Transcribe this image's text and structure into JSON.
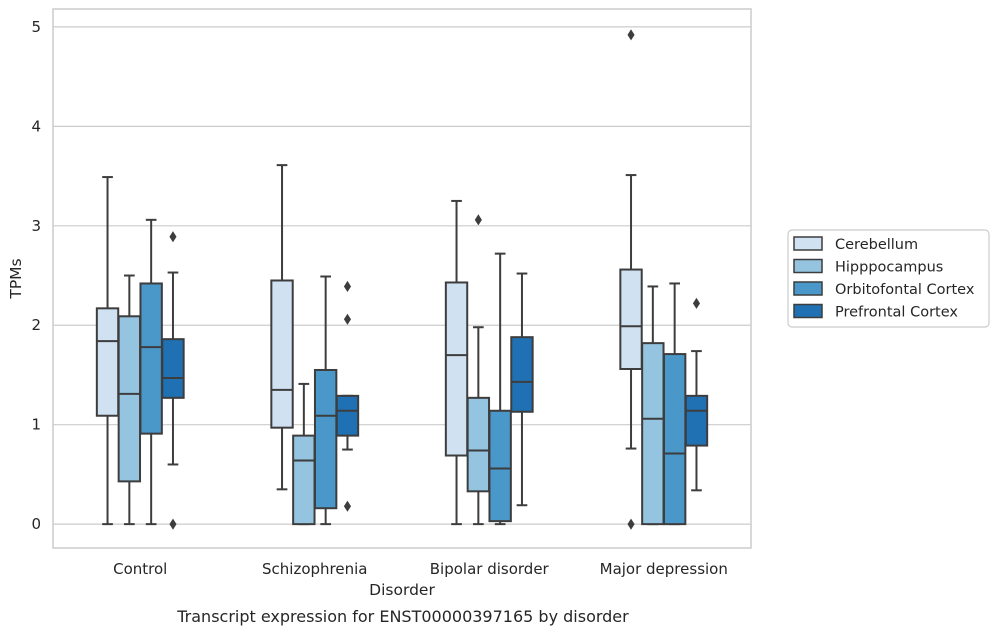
{
  "caption": "Transcript expression for ENST00000397165 by disorder",
  "chart_data": {
    "type": "boxplot",
    "xlabel": "Disorder",
    "ylabel": "TPMs",
    "ylim": [
      -0.24,
      5.18
    ],
    "yticks": [
      0,
      1,
      2,
      3,
      4,
      5
    ],
    "grid": "horizontal",
    "legend_position": "right",
    "categories": [
      "Control",
      "Schizophrenia",
      "Bipolar disorder",
      "Major depression"
    ],
    "series": [
      {
        "name": "Cerebellum",
        "color": "#d0e1f2",
        "boxes": [
          {
            "whislo": 0.0,
            "q1": 1.09,
            "med": 1.84,
            "q3": 2.17,
            "whishi": 3.49,
            "fliers": []
          },
          {
            "whislo": 0.35,
            "q1": 0.97,
            "med": 1.35,
            "q3": 2.45,
            "whishi": 3.61,
            "fliers": []
          },
          {
            "whislo": 0.0,
            "q1": 0.69,
            "med": 1.7,
            "q3": 2.43,
            "whishi": 3.25,
            "fliers": []
          },
          {
            "whislo": 0.76,
            "q1": 1.56,
            "med": 1.99,
            "q3": 2.56,
            "whishi": 3.51,
            "fliers": [
              4.92,
              0.0
            ]
          }
        ]
      },
      {
        "name": "Hipppocampus",
        "color": "#94c4df",
        "boxes": [
          {
            "whislo": 0.0,
            "q1": 0.43,
            "med": 1.31,
            "q3": 2.09,
            "whishi": 2.5,
            "fliers": []
          },
          {
            "whislo": 0.0,
            "q1": 0.0,
            "med": 0.64,
            "q3": 0.89,
            "whishi": 1.41,
            "fliers": []
          },
          {
            "whislo": 0.0,
            "q1": 0.33,
            "med": 0.74,
            "q3": 1.27,
            "whishi": 1.98,
            "fliers": [
              3.06
            ]
          },
          {
            "whislo": 0.0,
            "q1": 0.0,
            "med": 1.06,
            "q3": 1.82,
            "whishi": 2.39,
            "fliers": []
          }
        ]
      },
      {
        "name": "Orbitofontal Cortex",
        "color": "#4a98c9",
        "boxes": [
          {
            "whislo": 0.0,
            "q1": 0.91,
            "med": 1.78,
            "q3": 2.42,
            "whishi": 3.06,
            "fliers": []
          },
          {
            "whislo": 0.0,
            "q1": 0.16,
            "med": 1.09,
            "q3": 1.55,
            "whishi": 2.49,
            "fliers": []
          },
          {
            "whislo": 0.0,
            "q1": 0.03,
            "med": 0.56,
            "q3": 1.14,
            "whishi": 2.72,
            "fliers": []
          },
          {
            "whislo": 0.0,
            "q1": 0.0,
            "med": 0.71,
            "q3": 1.71,
            "whishi": 2.42,
            "fliers": []
          }
        ]
      },
      {
        "name": "Prefrontal Cortex",
        "color": "#2070b4",
        "boxes": [
          {
            "whislo": 0.6,
            "q1": 1.27,
            "med": 1.47,
            "q3": 1.86,
            "whishi": 2.53,
            "fliers": [
              2.89,
              0.0
            ]
          },
          {
            "whislo": 0.75,
            "q1": 0.89,
            "med": 1.14,
            "q3": 1.29,
            "whishi": 1.29,
            "fliers": [
              2.39,
              2.06,
              0.18
            ]
          },
          {
            "whislo": 0.19,
            "q1": 1.13,
            "med": 1.43,
            "q3": 1.88,
            "whishi": 2.52,
            "fliers": []
          },
          {
            "whislo": 0.34,
            "q1": 0.79,
            "med": 1.14,
            "q3": 1.29,
            "whishi": 1.74,
            "fliers": [
              2.22
            ]
          }
        ]
      }
    ]
  }
}
